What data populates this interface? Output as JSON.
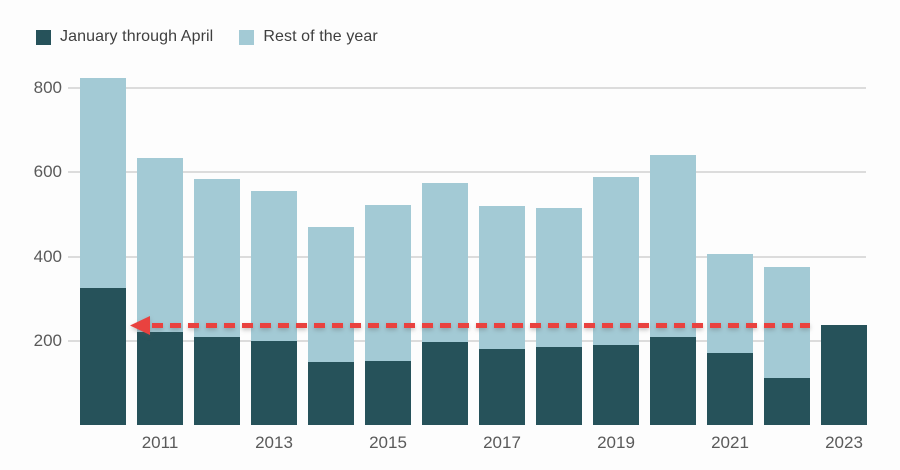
{
  "colors": {
    "jan_apr": "#26525a",
    "rest_of_year": "#a3cad5",
    "arrow": "#e9423f",
    "gridline": "#dcdcdc",
    "axis_text": "#5a5a5a"
  },
  "legend": {
    "items": [
      {
        "label": "January through April",
        "color": "#26525a"
      },
      {
        "label": "Rest of the year",
        "color": "#a3cad5"
      }
    ]
  },
  "chart_data": {
    "type": "bar",
    "stacked": true,
    "title": "",
    "xlabel": "",
    "ylabel": "",
    "categories": [
      "2010",
      "2011",
      "2012",
      "2013",
      "2014",
      "2015",
      "2016",
      "2017",
      "2018",
      "2019",
      "2020",
      "2021",
      "2022",
      "2023"
    ],
    "series": [
      {
        "name": "January through April",
        "color": "#26525a",
        "values": [
          325,
          220,
          210,
          200,
          150,
          152,
          198,
          180,
          185,
          190,
          210,
          172,
          112,
          238
        ]
      },
      {
        "name": "Rest of the year",
        "color": "#a3cad5",
        "values": [
          500,
          415,
          375,
          355,
          320,
          370,
          377,
          340,
          330,
          400,
          430,
          233,
          263,
          0
        ]
      }
    ],
    "totals": [
      825,
      635,
      585,
      555,
      470,
      522,
      575,
      520,
      515,
      590,
      640,
      405,
      375,
      238
    ],
    "y_ticks": [
      200,
      400,
      600,
      800
    ],
    "x_tick_labels": [
      "2011",
      "2013",
      "2015",
      "2017",
      "2019",
      "2021",
      "2023"
    ],
    "ylim": [
      0,
      830
    ],
    "grid": true,
    "legend_position": "top-left",
    "annotation": {
      "type": "dashed-arrow",
      "direction": "left",
      "y_value": 240,
      "color": "#e9423f",
      "meaning": "2023 January-April level traced back across prior years"
    }
  }
}
